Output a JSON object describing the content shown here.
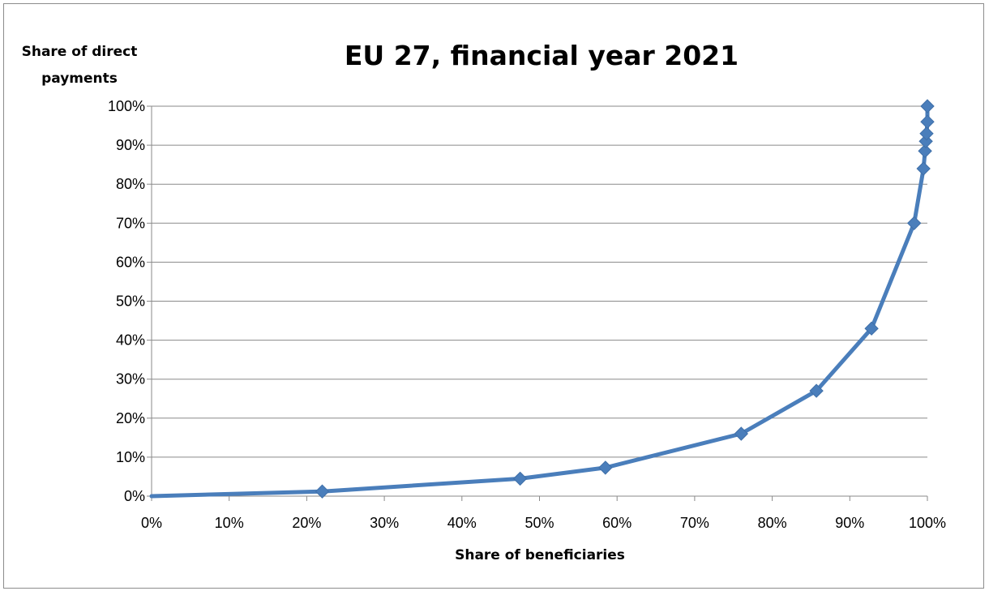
{
  "chart_data": {
    "type": "line",
    "title": "EU 27, financial year 2021",
    "ylabel_lines": [
      "Share of direct",
      "payments"
    ],
    "xlabel": "Share of beneficiaries",
    "xlim": [
      0,
      100
    ],
    "ylim": [
      0,
      100
    ],
    "x_ticks": [
      "0%",
      "10%",
      "20%",
      "30%",
      "40%",
      "50%",
      "60%",
      "70%",
      "80%",
      "90%",
      "100%"
    ],
    "y_ticks": [
      "0%",
      "10%",
      "20%",
      "30%",
      "40%",
      "50%",
      "60%",
      "70%",
      "80%",
      "90%",
      "100%"
    ],
    "grid": "horizontal",
    "legend": "none",
    "color": "#4a7ebb",
    "series": [
      {
        "x": [
          0,
          22,
          47.5,
          58.5,
          76,
          85.7,
          92.8,
          98.3,
          99.5,
          99.7,
          99.8,
          99.9,
          100,
          100
        ],
        "y": [
          0,
          1.2,
          4.5,
          7.3,
          16,
          27,
          43,
          70,
          84,
          88.5,
          91,
          93,
          96,
          100
        ]
      }
    ]
  }
}
